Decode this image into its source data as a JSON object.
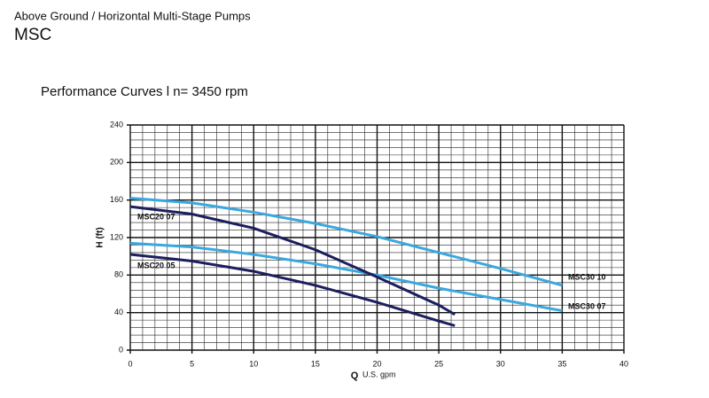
{
  "header": {
    "category": "Above Ground / Horizontal Multi-Stage Pumps",
    "product": "MSC",
    "subtitle": "Performance Curves l  n= 3450 rpm"
  },
  "chart_data": {
    "type": "line",
    "y_label": "H (ft)",
    "x_label_symbol": "Q",
    "x_label": "U.S. gpm",
    "xlim": [
      0,
      40
    ],
    "xticks": [
      0,
      5,
      10,
      15,
      20,
      25,
      30,
      35,
      40
    ],
    "ylim": [
      0,
      240
    ],
    "yticks": [
      0,
      40,
      80,
      120,
      160,
      200,
      240
    ],
    "grid": true,
    "series": [
      {
        "name": "MSC30 10",
        "color": "#3aa8de",
        "x": [
          0,
          5,
          10,
          15,
          20,
          25,
          30,
          35
        ],
        "values": [
          162,
          157,
          147,
          135,
          121,
          104,
          87,
          69
        ]
      },
      {
        "name": "MSC30 07",
        "color": "#3aa8de",
        "x": [
          0,
          5,
          10,
          15,
          20,
          25,
          30,
          35
        ],
        "values": [
          114,
          110,
          102,
          92,
          80,
          66,
          54,
          42
        ]
      },
      {
        "name": "MSC20 07",
        "color": "#1b1f5e",
        "x": [
          0,
          5,
          10,
          15,
          20,
          25,
          26.3
        ],
        "values": [
          153,
          145,
          130,
          107,
          78,
          48,
          38
        ]
      },
      {
        "name": "MSC20 05",
        "color": "#1b1f5e",
        "x": [
          0,
          5,
          10,
          15,
          20,
          25,
          26.3
        ],
        "values": [
          102,
          95,
          84,
          69,
          51,
          31,
          26
        ]
      }
    ]
  }
}
